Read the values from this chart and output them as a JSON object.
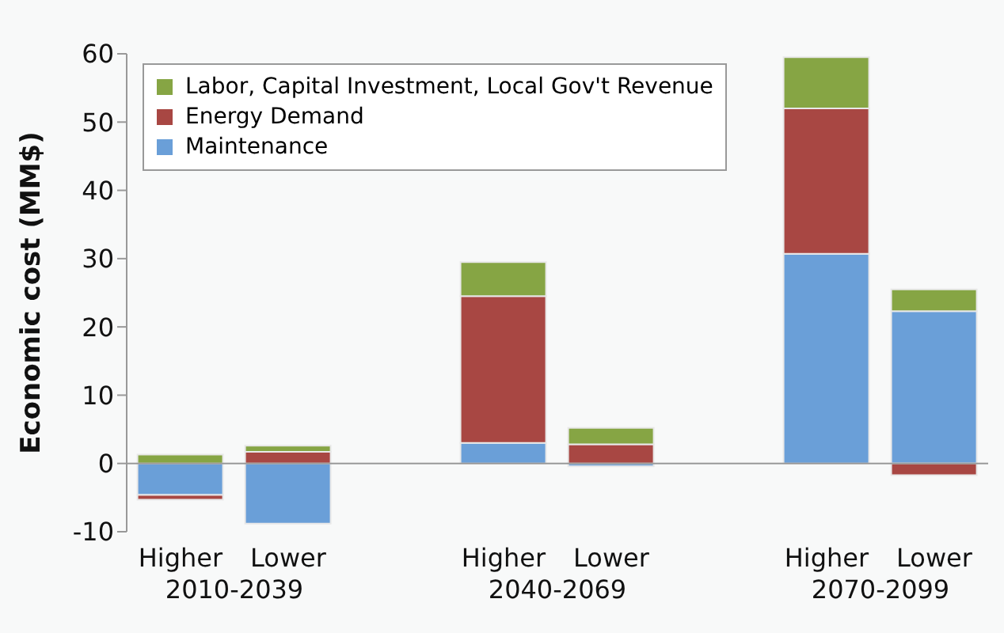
{
  "chart_data": {
    "type": "bar",
    "stacked": true,
    "ylabel": "Economic cost (MM$)",
    "categories": [
      "Higher",
      "Lower",
      null,
      "Higher",
      "Lower",
      null,
      "Higher",
      "Lower"
    ],
    "series": [
      {
        "name": "Maintenance",
        "color": "#6a9fd8",
        "values": [
          -4.6,
          -8.8,
          null,
          3,
          -0.4,
          null,
          30.7,
          22.3
        ]
      },
      {
        "name": "Energy Demand",
        "color": "#a84743",
        "values": [
          -0.7,
          1.7,
          null,
          21.5,
          2.8,
          null,
          21.3,
          -1.7
        ]
      },
      {
        "name": "Labor, Capital Investment, Local Gov't Revenue",
        "color": "#86a544",
        "values": [
          1.3,
          0.9,
          null,
          5,
          2.4,
          null,
          7.5,
          3.2
        ]
      }
    ],
    "ylim": [
      -10,
      60
    ],
    "yticks": [
      -10,
      0,
      10,
      20,
      30,
      40,
      50,
      60
    ],
    "legend": "top left",
    "annotations": [
      "2010-2039",
      "2040-2069",
      "2070-2099"
    ]
  }
}
